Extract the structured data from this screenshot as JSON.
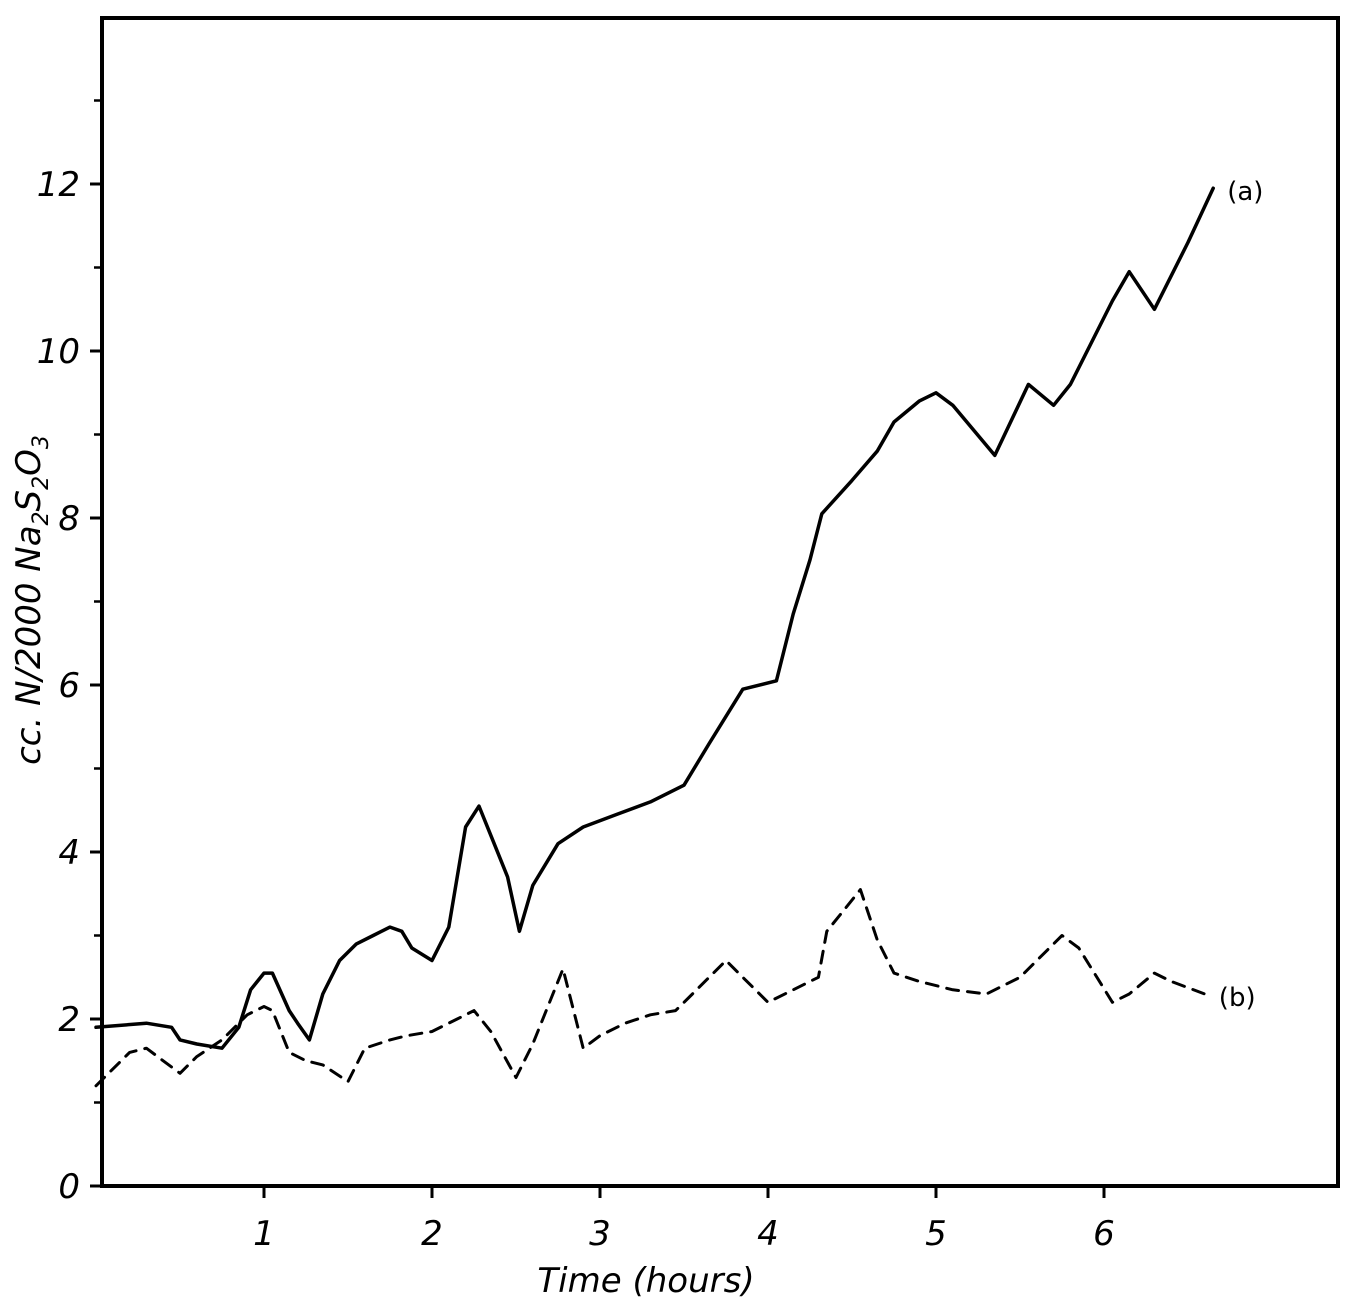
{
  "chart_data": {
    "type": "line",
    "xlabel": "Time (hours)",
    "ylabel": {
      "prefix": "cc. N/2000 Na",
      "sub1": "2",
      "mid": "S",
      "sub2": "2",
      "mid2": "O",
      "sub3": "3"
    },
    "xlim": [
      0,
      7
    ],
    "ylim": [
      0,
      14
    ],
    "x_ticks": [
      1,
      2,
      3,
      4,
      5,
      6
    ],
    "x_tick_labels": [
      "1",
      "2",
      "3",
      "4",
      "5",
      "6"
    ],
    "y_ticks": [
      0,
      2,
      4,
      6,
      8,
      10,
      12
    ],
    "y_tick_labels": [
      "0",
      "2",
      "4",
      "6",
      "8",
      "10",
      "12"
    ],
    "y_minor_ticks": [
      1,
      3,
      5,
      7,
      9,
      11,
      13
    ],
    "grid": false,
    "series": [
      {
        "name": "(a)",
        "style": "solid",
        "x": [
          0,
          0.3,
          0.45,
          0.5,
          0.6,
          0.75,
          0.85,
          0.92,
          1.0,
          1.05,
          1.15,
          1.2,
          1.27,
          1.35,
          1.45,
          1.55,
          1.65,
          1.75,
          1.82,
          1.88,
          2.0,
          2.1,
          2.2,
          2.28,
          2.35,
          2.45,
          2.52,
          2.6,
          2.75,
          2.9,
          3.1,
          3.3,
          3.5,
          3.65,
          3.85,
          4.05,
          4.15,
          4.25,
          4.32,
          4.5,
          4.65,
          4.75,
          4.9,
          5.0,
          5.1,
          5.35,
          5.55,
          5.7,
          5.8,
          6.05,
          6.15,
          6.3,
          6.5,
          6.65
        ],
        "y": [
          1.9,
          1.95,
          1.9,
          1.75,
          1.7,
          1.65,
          1.9,
          2.35,
          2.55,
          2.55,
          2.1,
          1.95,
          1.75,
          2.3,
          2.7,
          2.9,
          3.0,
          3.1,
          3.05,
          2.85,
          2.7,
          3.1,
          4.3,
          4.55,
          4.2,
          3.7,
          3.05,
          3.6,
          4.1,
          4.3,
          4.45,
          4.6,
          4.8,
          5.3,
          5.95,
          6.05,
          6.85,
          7.5,
          8.05,
          8.45,
          8.8,
          9.15,
          9.4,
          9.5,
          9.35,
          8.75,
          9.6,
          9.35,
          9.6,
          10.6,
          10.95,
          10.5,
          11.3,
          11.95
        ]
      },
      {
        "name": "(b)",
        "style": "dashed",
        "x": [
          0,
          0.2,
          0.3,
          0.4,
          0.5,
          0.6,
          0.75,
          0.9,
          1.0,
          1.05,
          1.15,
          1.25,
          1.35,
          1.5,
          1.6,
          1.75,
          1.85,
          2.0,
          2.15,
          2.25,
          2.35,
          2.5,
          2.6,
          2.78,
          2.9,
          3.0,
          3.15,
          3.3,
          3.45,
          3.55,
          3.75,
          3.85,
          4.0,
          4.15,
          4.3,
          4.35,
          4.45,
          4.55,
          4.65,
          4.75,
          4.9,
          5.1,
          5.3,
          5.5,
          5.75,
          5.85,
          6.05,
          6.15,
          6.3,
          6.4,
          6.6
        ],
        "y": [
          1.2,
          1.6,
          1.65,
          1.5,
          1.35,
          1.55,
          1.75,
          2.05,
          2.15,
          2.1,
          1.6,
          1.5,
          1.45,
          1.25,
          1.65,
          1.75,
          1.8,
          1.85,
          2.0,
          2.1,
          1.85,
          1.3,
          1.7,
          2.6,
          1.65,
          1.8,
          1.95,
          2.05,
          2.1,
          2.3,
          2.7,
          2.5,
          2.2,
          2.35,
          2.5,
          3.05,
          3.3,
          3.55,
          2.95,
          2.55,
          2.45,
          2.35,
          2.3,
          2.5,
          3.0,
          2.85,
          2.2,
          2.3,
          2.55,
          2.45,
          2.3
        ]
      }
    ]
  }
}
